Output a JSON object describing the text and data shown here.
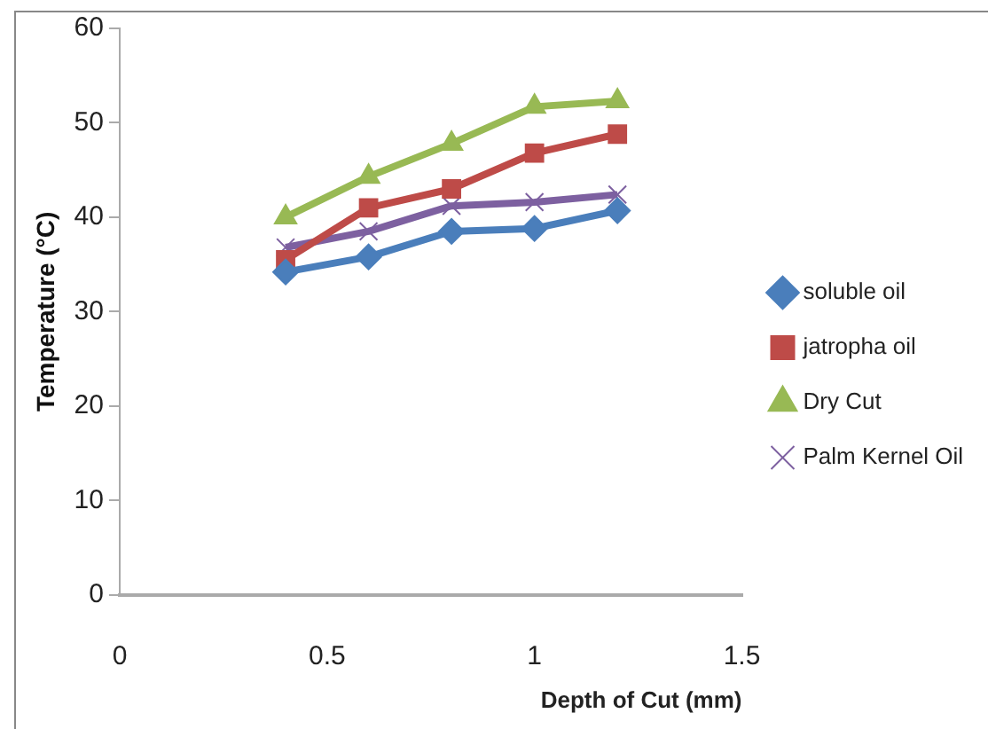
{
  "chart_data": {
    "type": "line",
    "xlabel": "Depth of Cut (mm)",
    "ylabel": "Temperature (°C)",
    "xlim": [
      0,
      1.5
    ],
    "xticks": [
      0,
      0.5,
      1,
      1.5
    ],
    "ylim": [
      0,
      60
    ],
    "yticks": [
      0,
      10,
      20,
      30,
      40,
      50,
      60
    ],
    "grid": false,
    "legend": "right",
    "line_style": "solid",
    "series": [
      {
        "name": "soluble oil",
        "color": "#4a7ebb",
        "marker": "diamond",
        "x": [
          0.4,
          0.6,
          0.8,
          1.0,
          1.2
        ],
        "values": [
          34.2,
          35.8,
          38.5,
          38.8,
          40.7
        ]
      },
      {
        "name": "jatropha oil",
        "color": "#be4b48",
        "marker": "square",
        "x": [
          0.4,
          0.6,
          0.8,
          1.0,
          1.2
        ],
        "values": [
          35.5,
          41,
          43,
          46.8,
          48.8
        ]
      },
      {
        "name": "Dry Cut",
        "color": "#98b954",
        "marker": "triangle",
        "x": [
          0.4,
          0.6,
          0.8,
          1.0,
          1.2
        ],
        "values": [
          40,
          44.3,
          47.8,
          51.7,
          52.3
        ]
      },
      {
        "name": "Palm Kernel Oil",
        "color": "#7d60a0",
        "marker": "cross",
        "x": [
          0.4,
          0.6,
          0.8,
          1.0,
          1.2
        ],
        "values": [
          36.8,
          38.5,
          41.2,
          41.6,
          42.4
        ]
      }
    ]
  }
}
